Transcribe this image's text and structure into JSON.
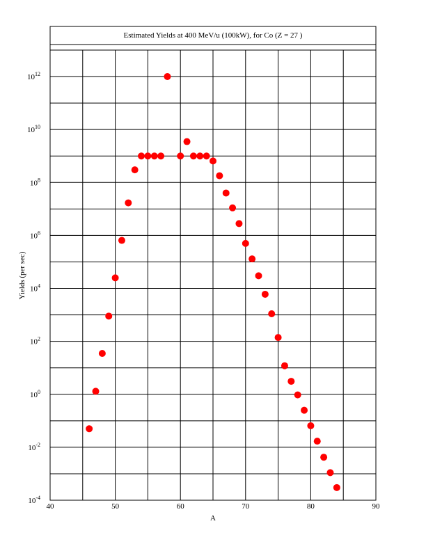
{
  "chart_data": {
    "type": "scatter",
    "title": "Estimated Yields at 400 MeV/u (100kW), for Co (Z = 27 )",
    "xlabel": "A",
    "ylabel": "Yields (per sec)",
    "xlim": [
      40,
      90
    ],
    "ylim_exponent": [
      -4,
      13
    ],
    "y_scale": "log",
    "grid": true,
    "x_ticks": [
      "40",
      "50",
      "60",
      "70",
      "80",
      "90"
    ],
    "y_tick_exponents": [
      "-4",
      "-2",
      "0",
      "2",
      "4",
      "6",
      "8",
      "10",
      "12"
    ],
    "y_tick_base": "10",
    "marker_color": "#ff0000",
    "series": [
      {
        "x": [
          46,
          47,
          48,
          49,
          50,
          51,
          52,
          53,
          54,
          55,
          56,
          57,
          58,
          60,
          61,
          62,
          63,
          64,
          65,
          66,
          67,
          68,
          69,
          70,
          71,
          72,
          73,
          74,
          75,
          76,
          77,
          78,
          79,
          80,
          81,
          82,
          83,
          84
        ],
        "y": [
          0.05,
          1.3,
          35,
          900,
          25000,
          650000,
          17000000,
          300000000,
          1000000000,
          1000000000,
          1000000000,
          1000000000,
          1000000000000,
          1000000000,
          3500000000,
          1000000000,
          1000000000,
          1000000000,
          650000000,
          180000000,
          40000000,
          11000000,
          2800000,
          500000,
          130000,
          30000,
          6000,
          1100,
          140,
          12,
          3.1,
          0.95,
          0.25,
          0.065,
          0.017,
          0.0042,
          0.0011,
          0.0003
        ]
      }
    ]
  }
}
